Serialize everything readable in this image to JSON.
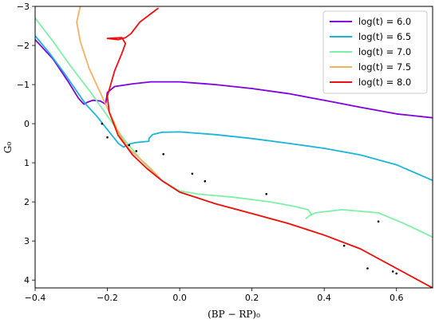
{
  "chart_data": {
    "type": "line",
    "xlabel": "(BP − RP)₀",
    "ylabel": "G₀",
    "xlim": [
      -0.4,
      0.7
    ],
    "ylim": [
      4.2,
      -3
    ],
    "y_inverted": true,
    "xticks": [
      -0.4,
      -0.2,
      0.0,
      0.2,
      0.4,
      0.6
    ],
    "xtick_labels": [
      "−0.4",
      "−0.2",
      "0.0",
      "0.2",
      "0.4",
      "0.6"
    ],
    "yticks": [
      -3,
      -2,
      -1,
      0,
      1,
      2,
      3,
      4
    ],
    "ytick_labels": [
      "−3",
      "−2",
      "−1",
      "0",
      "1",
      "2",
      "3",
      "4"
    ],
    "legend_position": "top-right",
    "series": [
      {
        "name": "log(t) = 6.0",
        "color": "#8000e0",
        "points": [
          [
            -0.4,
            -2.15
          ],
          [
            -0.35,
            -1.65
          ],
          [
            -0.31,
            -1.1
          ],
          [
            -0.28,
            -0.65
          ],
          [
            -0.265,
            -0.5
          ],
          [
            -0.255,
            -0.55
          ],
          [
            -0.24,
            -0.6
          ],
          [
            -0.22,
            -0.58
          ],
          [
            -0.205,
            -0.5
          ],
          [
            -0.2,
            -0.8
          ],
          [
            -0.18,
            -0.95
          ],
          [
            -0.13,
            -1.02
          ],
          [
            -0.08,
            -1.07
          ],
          [
            0.0,
            -1.07
          ],
          [
            0.1,
            -1.0
          ],
          [
            0.2,
            -0.9
          ],
          [
            0.3,
            -0.77
          ],
          [
            0.4,
            -0.6
          ],
          [
            0.5,
            -0.42
          ],
          [
            0.6,
            -0.25
          ],
          [
            0.7,
            -0.15
          ]
        ]
      },
      {
        "name": "log(t) = 6.5",
        "color": "#1ab5d8",
        "points": [
          [
            -0.4,
            -2.25
          ],
          [
            -0.36,
            -1.8
          ],
          [
            -0.32,
            -1.3
          ],
          [
            -0.29,
            -0.9
          ],
          [
            -0.26,
            -0.5
          ],
          [
            -0.23,
            -0.2
          ],
          [
            -0.2,
            0.15
          ],
          [
            -0.17,
            0.5
          ],
          [
            -0.155,
            0.6
          ],
          [
            -0.14,
            0.52
          ],
          [
            -0.12,
            0.48
          ],
          [
            -0.085,
            0.45
          ],
          [
            -0.085,
            0.38
          ],
          [
            -0.075,
            0.28
          ],
          [
            -0.05,
            0.22
          ],
          [
            0.0,
            0.21
          ],
          [
            0.1,
            0.28
          ],
          [
            0.2,
            0.38
          ],
          [
            0.3,
            0.5
          ],
          [
            0.4,
            0.63
          ],
          [
            0.5,
            0.8
          ],
          [
            0.6,
            1.05
          ],
          [
            0.7,
            1.45
          ]
        ]
      },
      {
        "name": "log(t) = 7.0",
        "color": "#7ff0a8",
        "points": [
          [
            -0.4,
            -2.7
          ],
          [
            -0.35,
            -2.1
          ],
          [
            -0.3,
            -1.45
          ],
          [
            -0.25,
            -0.85
          ],
          [
            -0.2,
            -0.2
          ],
          [
            -0.15,
            0.45
          ],
          [
            -0.1,
            1.0
          ],
          [
            -0.05,
            1.45
          ],
          [
            0.0,
            1.72
          ],
          [
            0.05,
            1.8
          ],
          [
            0.15,
            1.88
          ],
          [
            0.25,
            2.0
          ],
          [
            0.32,
            2.12
          ],
          [
            0.355,
            2.2
          ],
          [
            0.365,
            2.32
          ],
          [
            0.35,
            2.42
          ],
          [
            0.36,
            2.35
          ],
          [
            0.375,
            2.28
          ],
          [
            0.45,
            2.2
          ],
          [
            0.55,
            2.28
          ],
          [
            0.62,
            2.55
          ],
          [
            0.7,
            2.9
          ]
        ]
      },
      {
        "name": "log(t) = 7.5",
        "color": "#f8b060",
        "points": [
          [
            -0.275,
            -3.0
          ],
          [
            -0.285,
            -2.6
          ],
          [
            -0.275,
            -2.1
          ],
          [
            -0.25,
            -1.4
          ],
          [
            -0.22,
            -0.8
          ],
          [
            -0.19,
            -0.2
          ],
          [
            -0.165,
            0.3
          ],
          [
            -0.14,
            0.65
          ],
          [
            -0.115,
            0.85
          ],
          [
            -0.08,
            1.15
          ],
          [
            -0.05,
            1.45
          ],
          [
            0.0,
            1.75
          ],
          [
            0.1,
            2.05
          ],
          [
            0.2,
            2.3
          ],
          [
            0.3,
            2.55
          ],
          [
            0.4,
            2.85
          ],
          [
            0.5,
            3.2
          ],
          [
            0.6,
            3.7
          ],
          [
            0.7,
            4.2
          ]
        ]
      },
      {
        "name": "log(t) = 8.0",
        "color": "#ee1010",
        "points": [
          [
            -0.06,
            -2.95
          ],
          [
            -0.11,
            -2.6
          ],
          [
            -0.135,
            -2.3
          ],
          [
            -0.15,
            -2.2
          ],
          [
            -0.17,
            -2.15
          ],
          [
            -0.2,
            -2.18
          ],
          [
            -0.16,
            -2.2
          ],
          [
            -0.15,
            -2.05
          ],
          [
            -0.16,
            -1.8
          ],
          [
            -0.18,
            -1.35
          ],
          [
            -0.2,
            -0.7
          ],
          [
            -0.195,
            -0.3
          ],
          [
            -0.17,
            0.3
          ],
          [
            -0.13,
            0.8
          ],
          [
            -0.09,
            1.15
          ],
          [
            -0.05,
            1.45
          ],
          [
            0.0,
            1.75
          ],
          [
            0.1,
            2.05
          ],
          [
            0.2,
            2.3
          ],
          [
            0.3,
            2.55
          ],
          [
            0.4,
            2.85
          ],
          [
            0.5,
            3.2
          ],
          [
            0.6,
            3.7
          ],
          [
            0.7,
            4.2
          ]
        ]
      }
    ],
    "scatter_points": [
      [
        -0.215,
        0.0
      ],
      [
        -0.2,
        0.35
      ],
      [
        -0.14,
        0.55
      ],
      [
        -0.12,
        0.7
      ],
      [
        -0.045,
        0.78
      ],
      [
        0.035,
        1.28
      ],
      [
        0.07,
        1.47
      ],
      [
        0.24,
        1.8
      ],
      [
        0.455,
        3.12
      ],
      [
        0.52,
        3.7
      ],
      [
        0.55,
        2.5
      ],
      [
        0.59,
        3.78
      ],
      [
        0.6,
        3.83
      ]
    ]
  }
}
